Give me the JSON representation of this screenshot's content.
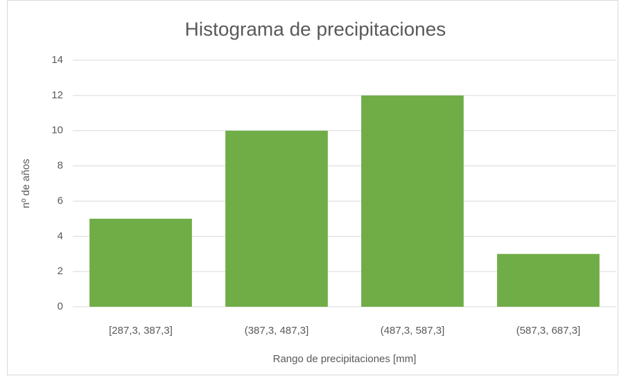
{
  "chart_data": {
    "type": "bar",
    "title": "Histograma de precipitaciones",
    "x_label": "Rango de precipitaciones [mm]",
    "y_label": "nº de años",
    "categories": [
      "[287,3, 387,3]",
      "(387,3, 487,3]",
      "(487,3, 587,3]",
      "(587,3, 687,3]"
    ],
    "values": [
      5,
      10,
      12,
      3
    ],
    "color": "#70ad47",
    "ylim": [
      0,
      14
    ],
    "yticks": [
      0,
      2,
      4,
      6,
      8,
      10,
      12,
      14
    ],
    "grid": true
  }
}
